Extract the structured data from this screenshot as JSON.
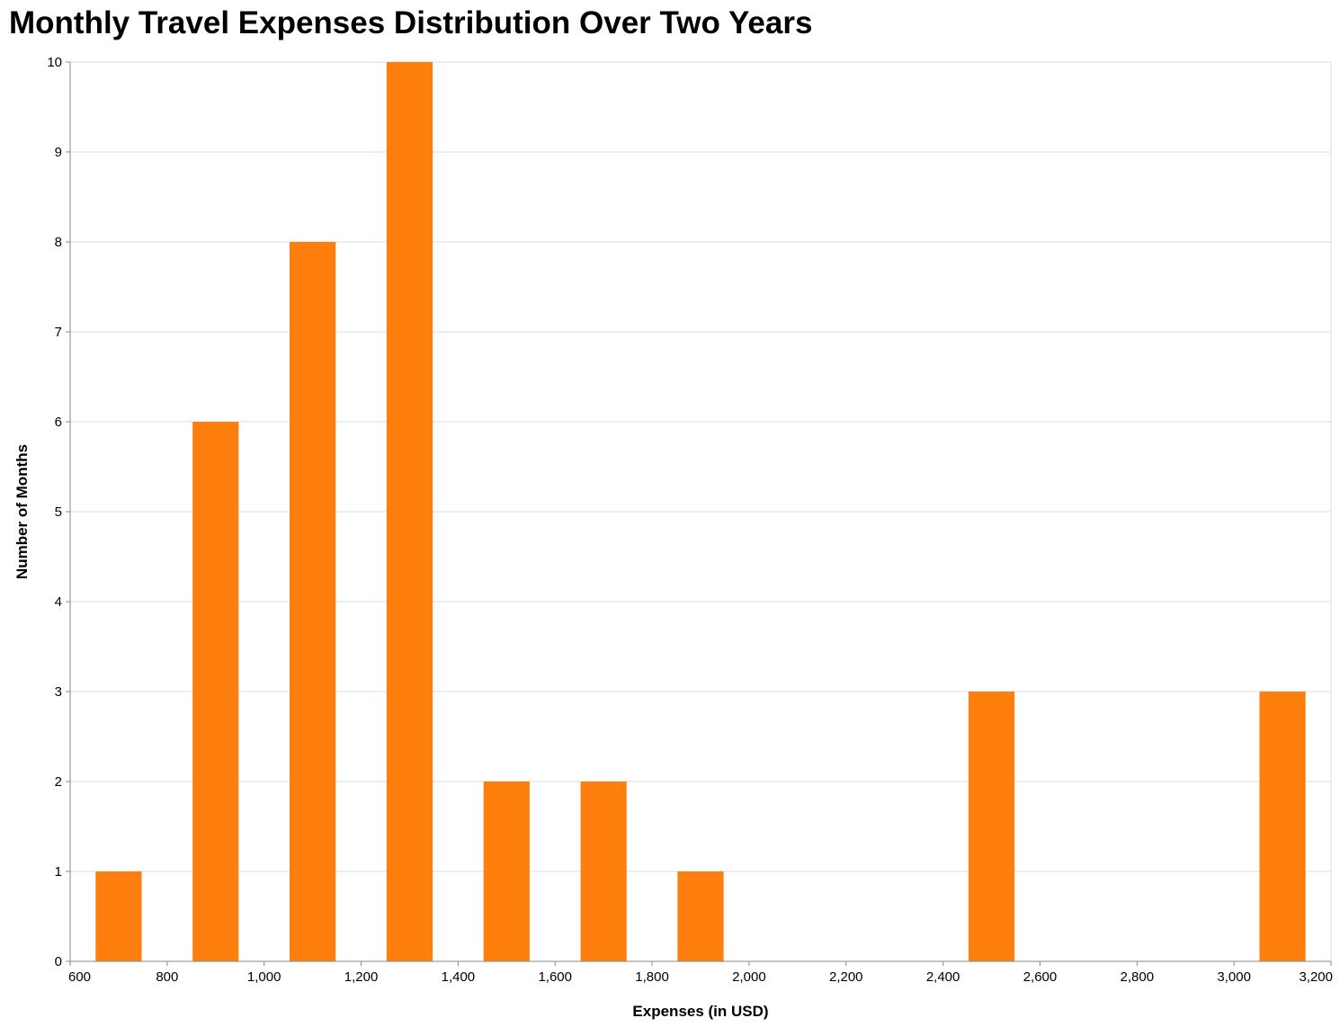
{
  "chart_data": {
    "type": "bar",
    "title": "Monthly Travel Expenses Distribution Over Two Years",
    "xlabel": "Expenses (in USD)",
    "ylabel": "Number of Months",
    "xlim": [
      600,
      3200
    ],
    "ylim": [
      0,
      10
    ],
    "x_ticks": [
      600,
      800,
      1000,
      1200,
      1400,
      1600,
      1800,
      2000,
      2200,
      2400,
      2600,
      2800,
      3000,
      3200
    ],
    "x_tick_labels": [
      "600",
      "800",
      "1,000",
      "1,200",
      "1,400",
      "1,600",
      "1,800",
      "2,000",
      "2,200",
      "2,400",
      "2,600",
      "2,800",
      "3,000",
      "3,200"
    ],
    "y_ticks": [
      0,
      1,
      2,
      3,
      4,
      5,
      6,
      7,
      8,
      9,
      10
    ],
    "y_tick_labels": [
      "0",
      "1",
      "2",
      "3",
      "4",
      "5",
      "6",
      "7",
      "8",
      "9",
      "10"
    ],
    "bin_width": 95,
    "x": [
      700,
      900,
      1100,
      1300,
      1500,
      1700,
      1900,
      2500,
      3100
    ],
    "values": [
      1,
      6,
      8,
      10,
      2,
      2,
      1,
      3,
      3
    ],
    "color": "#ff7f0e",
    "grid": true
  }
}
